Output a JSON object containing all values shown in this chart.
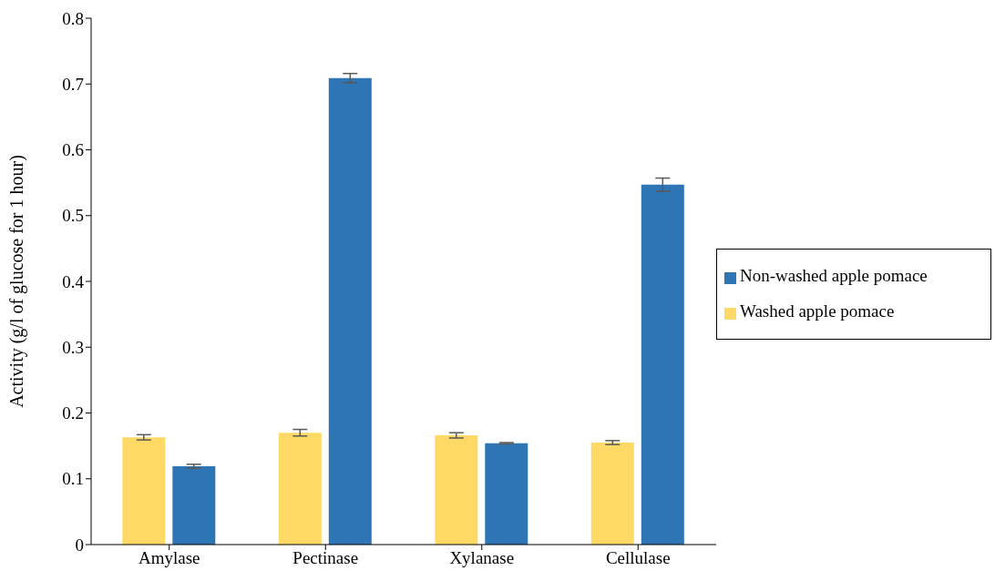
{
  "chart_data": {
    "type": "bar",
    "ylabel": "Activity (g/l of glucose for 1 hour)",
    "categories": [
      "Amylase",
      "Pectinase",
      "Xylanase",
      "Cellulase"
    ],
    "series": [
      {
        "name": "Washed apple pomace",
        "color": "#ffd966",
        "values": [
          0.163,
          0.17,
          0.166,
          0.155
        ],
        "errors": [
          0.004,
          0.005,
          0.004,
          0.003
        ]
      },
      {
        "name": "Non-washed apple pomace",
        "color": "#2e75b6",
        "values": [
          0.119,
          0.709,
          0.154,
          0.547
        ],
        "errors": [
          0.003,
          0.007,
          0.001,
          0.01
        ]
      }
    ],
    "ylim": [
      0,
      0.8
    ],
    "yticks": [
      0,
      0.1,
      0.2,
      0.3,
      0.4,
      0.5,
      0.6,
      0.7,
      0.8
    ],
    "grid": false,
    "legend": "right"
  }
}
